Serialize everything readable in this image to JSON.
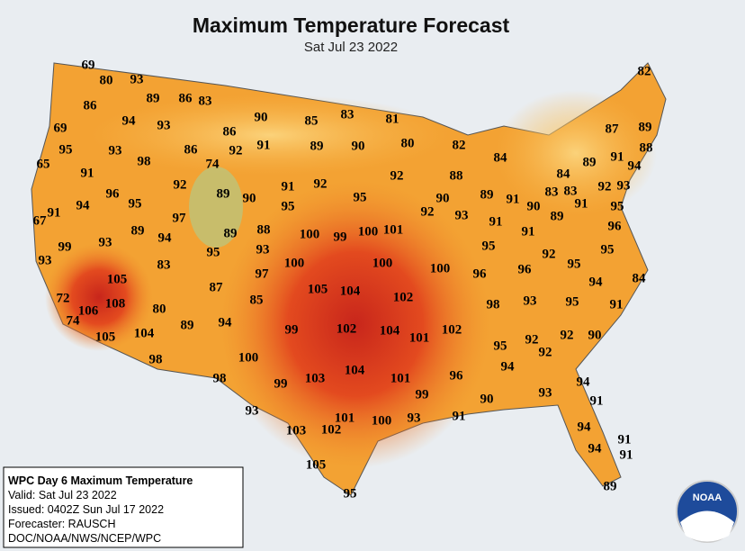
{
  "title": "Maximum Temperature Forecast",
  "subtitle": "Sat Jul 23 2022",
  "info": [
    "WPC Day 6 Maximum Temperature",
    "Valid: Sat Jul 23 2022",
    "Issued: 0402Z Sun Jul 17 2022",
    "Forecaster: RAUSCH",
    "DOC/NOAA/NWS/NCEP/WPC"
  ],
  "logo": "NOAA",
  "temperatures": [
    69,
    80,
    93,
    89,
    86,
    83,
    82,
    86,
    94,
    93,
    90,
    85,
    83,
    81,
    87,
    89,
    69,
    86,
    89,
    90,
    80,
    82,
    88,
    95,
    93,
    98,
    86,
    92,
    91,
    74,
    84,
    89,
    91,
    94,
    65,
    91,
    92,
    91,
    92,
    92,
    88,
    84,
    92,
    93,
    96,
    95,
    89,
    90,
    95,
    95,
    90,
    89,
    91,
    90,
    83,
    83,
    91,
    95,
    91,
    94,
    97,
    92,
    93,
    91,
    89,
    67,
    89,
    94,
    89,
    88,
    100,
    99,
    100,
    101,
    91,
    96,
    99,
    93,
    95,
    93,
    95,
    92,
    95,
    93,
    83,
    100,
    100,
    100,
    96,
    96,
    95,
    97,
    105,
    94,
    84,
    87,
    105,
    104,
    102,
    85,
    72,
    108,
    106,
    80,
    98,
    93,
    95,
    91,
    74,
    99,
    102,
    104,
    101,
    102,
    89,
    94,
    92,
    92,
    90,
    105,
    104,
    95,
    92,
    98,
    100,
    104,
    94,
    98,
    99,
    103,
    101,
    96,
    94,
    99,
    90,
    93,
    91,
    93,
    101,
    100,
    93,
    91,
    103,
    102,
    94,
    91,
    94,
    91,
    105,
    95,
    89
  ]
}
